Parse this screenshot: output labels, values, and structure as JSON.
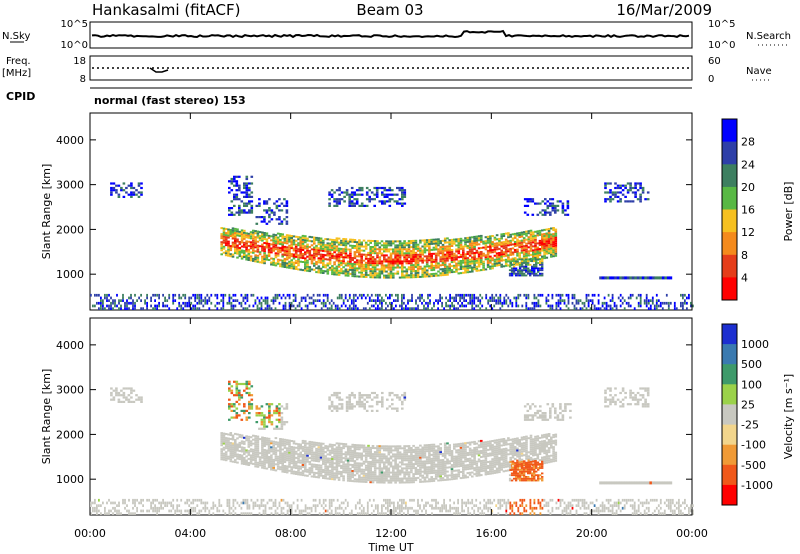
{
  "header": {
    "station": "Hankasalmi (fitACF)",
    "beam": "Beam 03",
    "date": "16/Mar/2009"
  },
  "top_panels": {
    "nsky_label": "N.Sky",
    "nsearch_label": "N.Search",
    "n_top_tick": "10^5",
    "n_bottom_tick": "10^0",
    "freq_label": "Freq.",
    "freq_unit": "[MHz]",
    "freq_top": "18",
    "freq_bottom": "8",
    "nave_label": "Nave",
    "nave_top": "60",
    "nave_bottom": "0",
    "cpid_label": "CPID",
    "cpid_text": "normal (fast stereo) 153"
  },
  "chart_data": [
    {
      "type": "heatmap",
      "name": "power",
      "ylabel": "Slant Range [km]",
      "xlabel": "Time UT",
      "ylim": [
        200,
        4600
      ],
      "yticks": [
        1000,
        2000,
        3000,
        4000
      ],
      "xticks": [
        "00:00",
        "04:00",
        "08:00",
        "12:00",
        "16:00",
        "20:00",
        "00:00"
      ],
      "colorbar_label": "Power [dB]",
      "colorbar_ticks": [
        "4",
        "8",
        "12",
        "16",
        "20",
        "24",
        "28"
      ],
      "colorbar_colors": [
        "#0000ff",
        "#2e3fa8",
        "#3d7f60",
        "#58b844",
        "#f6c020",
        "#f48a1c",
        "#e53d1a",
        "#ff0000"
      ]
    },
    {
      "type": "heatmap",
      "name": "velocity",
      "ylabel": "Slant Range [km]",
      "xlabel": "Time UT",
      "ylim": [
        200,
        4600
      ],
      "yticks": [
        1000,
        2000,
        3000,
        4000
      ],
      "xticks": [
        "00:00",
        "04:00",
        "08:00",
        "12:00",
        "16:00",
        "20:00",
        "00:00"
      ],
      "colorbar_label": "Velocity [m s⁻¹]",
      "colorbar_ticks": [
        "1000",
        "500",
        "100",
        "25",
        "-25",
        "-100",
        "-500",
        "-1000"
      ],
      "colorbar_colors": [
        "#1c2fd0",
        "#3a7ab0",
        "#3e9a6a",
        "#9bd24a",
        "#c8c8c0",
        "#f2d58c",
        "#f09a36",
        "#f0581a",
        "#ff0000"
      ]
    }
  ]
}
